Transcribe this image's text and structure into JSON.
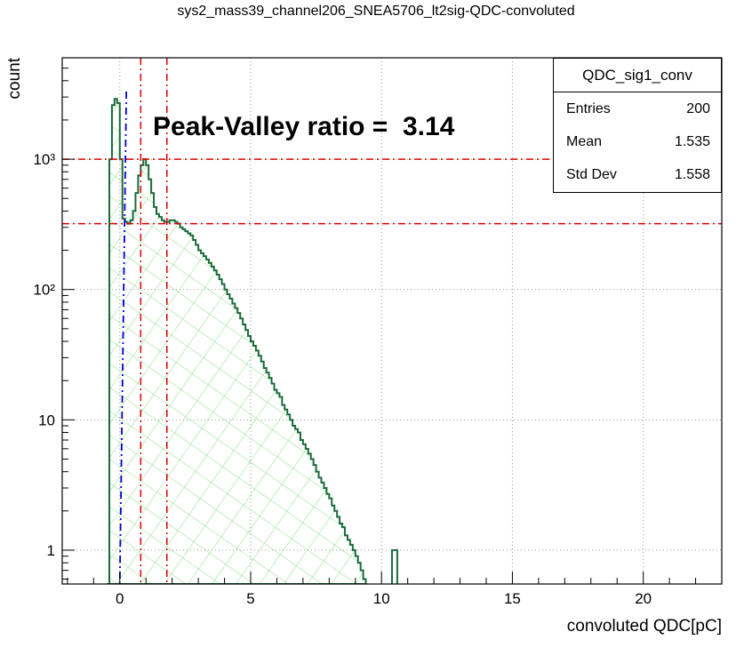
{
  "title": "sys2_mass39_channel206_SNEA5706_lt2sig-QDC-convoluted",
  "annotation": "Peak-Valley ratio =  3.14",
  "stats": {
    "name": "QDC_sig1_conv",
    "rows": [
      {
        "label": "Entries",
        "value": "200"
      },
      {
        "label": "Mean",
        "value": "1.535"
      },
      {
        "label": "Std Dev",
        "value": "1.558"
      }
    ]
  },
  "chart_data": {
    "type": "histogram",
    "xlabel": "convoluted QDC[pC]",
    "ylabel": "count",
    "xlim": [
      -2.2,
      23
    ],
    "ylim": [
      0.55,
      6000
    ],
    "ylog": true,
    "x_ticks": [
      {
        "v": 0,
        "t": "0"
      },
      {
        "v": 5,
        "t": "5"
      },
      {
        "v": 10,
        "t": "10"
      },
      {
        "v": 15,
        "t": "15"
      },
      {
        "v": 20,
        "t": "20"
      }
    ],
    "y_ticks": [
      {
        "v": 1,
        "t": "1"
      },
      {
        "v": 10,
        "t": "10"
      },
      {
        "v": 100,
        "t": "10²"
      },
      {
        "v": 1000,
        "t": "10³"
      }
    ],
    "grid": true,
    "colors": {
      "line": "#1a6b3a",
      "fill_hatch": "#88dd88",
      "marker_red": "#dd0000",
      "marker_blue": "#0000cc"
    },
    "histogram": [
      [
        -0.5,
        0.5
      ],
      [
        -0.4,
        1000
      ],
      [
        -0.3,
        2600
      ],
      [
        -0.2,
        2900
      ],
      [
        -0.1,
        2700
      ],
      [
        0.0,
        1000
      ],
      [
        0.1,
        350
      ],
      [
        0.2,
        330
      ],
      [
        0.3,
        320
      ],
      [
        0.4,
        340
      ],
      [
        0.5,
        400
      ],
      [
        0.6,
        550
      ],
      [
        0.7,
        750
      ],
      [
        0.8,
        900
      ],
      [
        0.9,
        1000
      ],
      [
        1.0,
        900
      ],
      [
        1.1,
        700
      ],
      [
        1.2,
        550
      ],
      [
        1.3,
        430
      ],
      [
        1.4,
        380
      ],
      [
        1.5,
        360
      ],
      [
        1.6,
        340
      ],
      [
        1.7,
        330
      ],
      [
        1.8,
        330
      ],
      [
        1.9,
        340
      ],
      [
        2.0,
        340
      ],
      [
        2.1,
        330
      ],
      [
        2.2,
        320
      ],
      [
        2.3,
        300
      ],
      [
        2.4,
        290
      ],
      [
        2.5,
        280
      ],
      [
        2.6,
        270
      ],
      [
        2.7,
        260
      ],
      [
        2.8,
        240
      ],
      [
        2.9,
        220
      ],
      [
        3.0,
        200
      ],
      [
        3.1,
        190
      ],
      [
        3.2,
        180
      ],
      [
        3.3,
        170
      ],
      [
        3.4,
        160
      ],
      [
        3.5,
        150
      ],
      [
        3.6,
        140
      ],
      [
        3.7,
        130
      ],
      [
        3.8,
        120
      ],
      [
        3.9,
        110
      ],
      [
        4.0,
        100
      ],
      [
        4.1,
        92
      ],
      [
        4.2,
        85
      ],
      [
        4.3,
        78
      ],
      [
        4.4,
        72
      ],
      [
        4.5,
        66
      ],
      [
        4.6,
        60
      ],
      [
        4.7,
        54
      ],
      [
        4.8,
        49
      ],
      [
        4.9,
        44
      ],
      [
        5.0,
        40
      ],
      [
        5.1,
        37
      ],
      [
        5.2,
        34
      ],
      [
        5.3,
        31
      ],
      [
        5.4,
        28
      ],
      [
        5.5,
        25
      ],
      [
        5.6,
        23
      ],
      [
        5.7,
        21
      ],
      [
        5.8,
        19
      ],
      [
        5.9,
        17
      ],
      [
        6.0,
        16
      ],
      [
        6.1,
        15
      ],
      [
        6.2,
        13
      ],
      [
        6.3,
        12
      ],
      [
        6.4,
        11
      ],
      [
        6.5,
        10
      ],
      [
        6.6,
        9
      ],
      [
        6.7,
        8.5
      ],
      [
        6.8,
        8
      ],
      [
        6.9,
        7
      ],
      [
        7.0,
        6.5
      ],
      [
        7.1,
        6
      ],
      [
        7.2,
        5.5
      ],
      [
        7.3,
        5
      ],
      [
        7.4,
        4.5
      ],
      [
        7.5,
        4
      ],
      [
        7.6,
        3.6
      ],
      [
        7.7,
        3.3
      ],
      [
        7.8,
        3
      ],
      [
        7.9,
        2.7
      ],
      [
        8.0,
        2.5
      ],
      [
        8.1,
        2.2
      ],
      [
        8.2,
        2
      ],
      [
        8.3,
        1.8
      ],
      [
        8.4,
        1.6
      ],
      [
        8.5,
        1.5
      ],
      [
        8.6,
        1.3
      ],
      [
        8.7,
        1.2
      ],
      [
        8.8,
        1.1
      ],
      [
        8.9,
        1.0
      ],
      [
        9.0,
        0.9
      ],
      [
        9.1,
        0.8
      ],
      [
        9.2,
        0.7
      ],
      [
        9.3,
        0.6
      ]
    ],
    "outlier_bin": {
      "x": 10.4,
      "y": 1.0,
      "width": 0.2
    },
    "markers": {
      "vertical_red": [
        0.8,
        1.8
      ],
      "vertical_blue": [
        0.25
      ],
      "horizontal_red": [
        1000,
        320
      ]
    }
  }
}
